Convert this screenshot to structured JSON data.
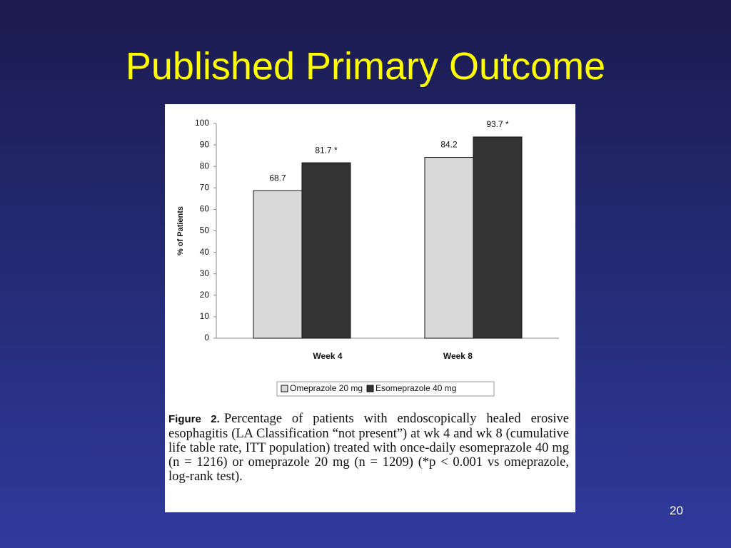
{
  "slide": {
    "title": "Published Primary Outcome",
    "page_number": "20"
  },
  "chart_data": {
    "type": "bar",
    "ylabel": "% of Patients",
    "categories": [
      "Week 4",
      "Week 8"
    ],
    "series": [
      {
        "name": "Omeprazole 20 mg",
        "color": "#d9d9d9",
        "values": [
          68.7,
          84.2
        ],
        "value_labels": [
          "68.7",
          "84.2"
        ]
      },
      {
        "name": "Esomeprazole 40 mg",
        "color": "#333333",
        "values": [
          81.7,
          93.7
        ],
        "value_labels": [
          "81.7 *",
          "93.7 *"
        ]
      }
    ],
    "ylim": [
      0,
      100
    ],
    "yticks": [
      0,
      10,
      20,
      30,
      40,
      50,
      60,
      70,
      80,
      90,
      100
    ],
    "grid": false
  },
  "figure": {
    "label": "Figure 2.",
    "caption": "Percentage of patients with endoscopically healed erosive esophagitis (LA Classification “not present”) at wk 4 and wk 8 (cumulative life table rate, ITT population) treated with once-daily esomeprazole 40 mg (n = 1216) or omeprazole 20 mg (n = 1209) (*p < 0.001 vs omeprazole, log-rank test)."
  }
}
